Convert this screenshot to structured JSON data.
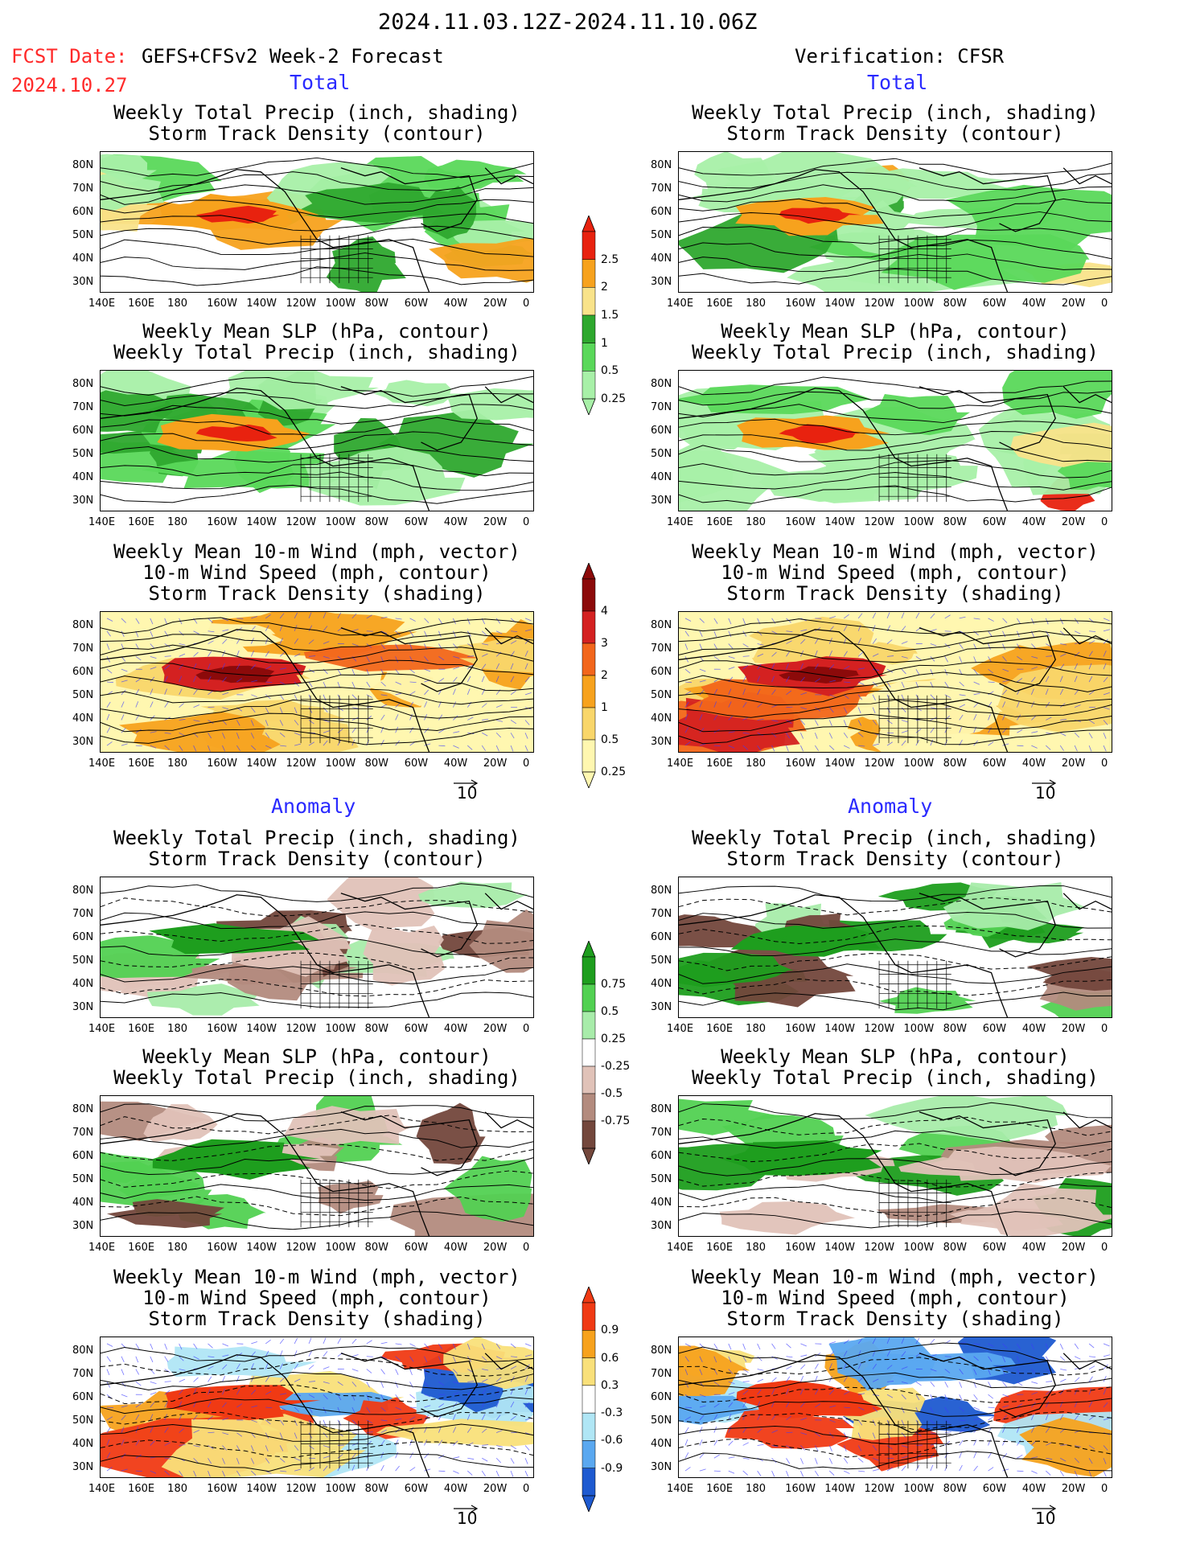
{
  "header": {
    "date_range": "2024.11.03.12Z-2024.11.10.06Z",
    "fcst_label": "FCST Date:",
    "fcst_product": "GEFS+CFSv2 Week-2 Forecast",
    "fcst_date": "2024.10.27",
    "verification": "Verification: CFSR"
  },
  "sections": {
    "total": "Total",
    "anomaly": "Anomaly"
  },
  "titles": {
    "precip_a": "Weekly Total Precip (inch, shading)",
    "precip_b": "Storm Track Density (contour)",
    "slp_a": "Weekly Mean SLP (hPa, contour)",
    "slp_b": "Weekly Total Precip (inch, shading)",
    "wind_a": "Weekly Mean 10-m Wind (mph, vector)",
    "wind_b": "10-m Wind Speed (mph, contour)",
    "wind_c": "Storm Track Density (shading)"
  },
  "axes": {
    "lon": [
      "140E",
      "160E",
      "180",
      "160W",
      "140W",
      "120W",
      "100W",
      "80W",
      "60W",
      "40W",
      "20W",
      "0"
    ],
    "lat": [
      "80N",
      "70N",
      "60N",
      "50N",
      "40N",
      "30N"
    ]
  },
  "vector_ref": "10",
  "colorbars": {
    "precip_total": {
      "labels": [
        "2.5",
        "2",
        "1.5",
        "1",
        "0.5",
        "0.25"
      ],
      "colors": [
        "#e8220f",
        "#f7a21d",
        "#f9e38a",
        "#2ea82e",
        "#5ad85a",
        "#a8f0a8"
      ]
    },
    "storm_total": {
      "labels": [
        "4",
        "3",
        "2",
        "1",
        "0.5",
        "0.25"
      ],
      "colors": [
        "#8c0a0a",
        "#d42121",
        "#f2661b",
        "#f7a21d",
        "#f9d66a",
        "#fff7b0"
      ]
    },
    "precip_anom": {
      "labels": [
        "0.75",
        "0.5",
        "0.25",
        "-0.25",
        "-0.5",
        "-0.75"
      ],
      "colors": [
        "#1e9e1e",
        "#52d152",
        "#a8ecaa",
        "#ffffff",
        "#e0c2b8",
        "#b38b7e",
        "#73473c"
      ]
    },
    "storm_anom": {
      "labels": [
        "0.9",
        "0.6",
        "0.3",
        "-0.3",
        "-0.6",
        "-0.9"
      ],
      "colors": [
        "#f03a14",
        "#f7a21d",
        "#f9e07a",
        "#ffffff",
        "#b0e6f5",
        "#5aa8f0",
        "#1e5ad0"
      ]
    }
  }
}
